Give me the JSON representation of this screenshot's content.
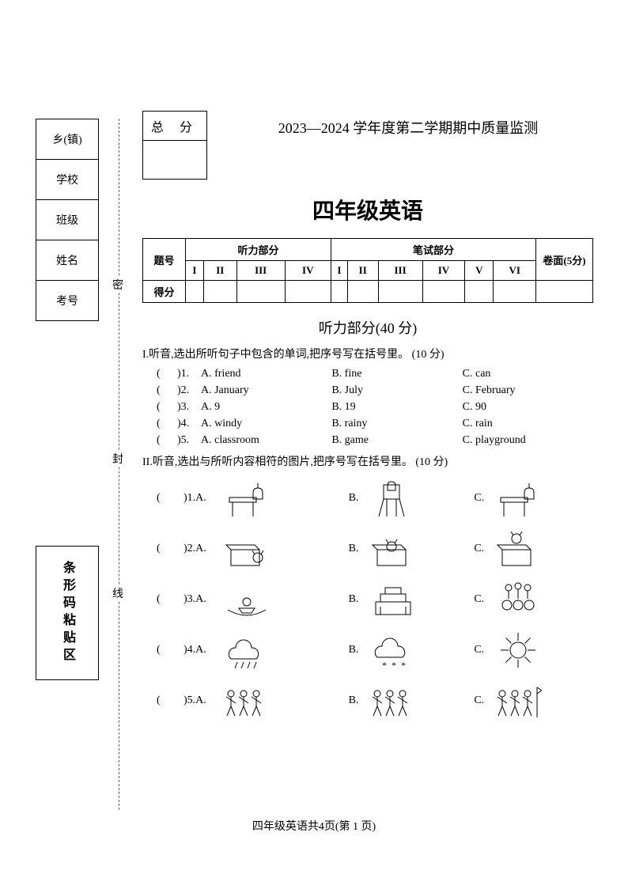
{
  "sidebar": {
    "fields": [
      "乡(镇)",
      "学校",
      "班级",
      "姓名",
      "考号"
    ],
    "barcode_label": "条形码粘贴区",
    "fold_labels": {
      "mi": "密",
      "feng": "封",
      "xian": "线"
    }
  },
  "header": {
    "total_score_label": "总 分",
    "exam_title": "2023—2024 学年度第二学期期中质量监测",
    "grade_title": "四年级英语"
  },
  "score_table": {
    "row1_label": "题号",
    "listening_label": "听力部分",
    "written_label": "笔试部分",
    "paper_label": "卷面(5分)",
    "listening_cols": [
      "I",
      "II",
      "III",
      "IV"
    ],
    "written_cols": [
      "I",
      "II",
      "III",
      "IV",
      "V",
      "VI"
    ],
    "row2_label": "得分"
  },
  "listening_section_title": "听力部分(40 分)",
  "q1": {
    "instr": "I.听音,选出所听句子中包含的单词,把序号写在括号里。 (10 分)",
    "items": [
      {
        "n": ")1.",
        "a": "A. friend",
        "b": "B. fine",
        "c": "C. can"
      },
      {
        "n": ")2.",
        "a": "A. January",
        "b": "B. July",
        "c": "C. February"
      },
      {
        "n": ")3.",
        "a": "A. 9",
        "b": "B. 19",
        "c": "C. 90"
      },
      {
        "n": ")4.",
        "a": "A. windy",
        "b": "B. rainy",
        "c": "C. rain"
      },
      {
        "n": ")5.",
        "a": "A. classroom",
        "b": "B. game",
        "c": "C. playground"
      }
    ]
  },
  "q2": {
    "instr": "II.听音,选出与所听内容相符的图片,把序号写在括号里。 (10 分)",
    "items": [
      {
        "n": ")1.A.",
        "a_desc": "desk+bag",
        "b_desc": "chair+bag",
        "c_desc": "desk side+bag"
      },
      {
        "n": ")2.A.",
        "a_desc": "cat by box",
        "b_desc": "cat in box",
        "c_desc": "cat on box"
      },
      {
        "n": ")3.A.",
        "a_desc": "boat/lake",
        "b_desc": "tiananmen",
        "c_desc": "kids balloons"
      },
      {
        "n": ")4.A.",
        "a_desc": "rain cloud",
        "b_desc": "snow cloud",
        "c_desc": "sun"
      },
      {
        "n": ")5.A.",
        "a_desc": "kids running",
        "b_desc": "kids jumping",
        "c_desc": "kids race finish"
      }
    ]
  },
  "footer": "四年级英语共4页(第 1 页)",
  "svg_colors": {
    "stroke": "#000000",
    "fill": "#ffffff",
    "light": "#888888"
  }
}
